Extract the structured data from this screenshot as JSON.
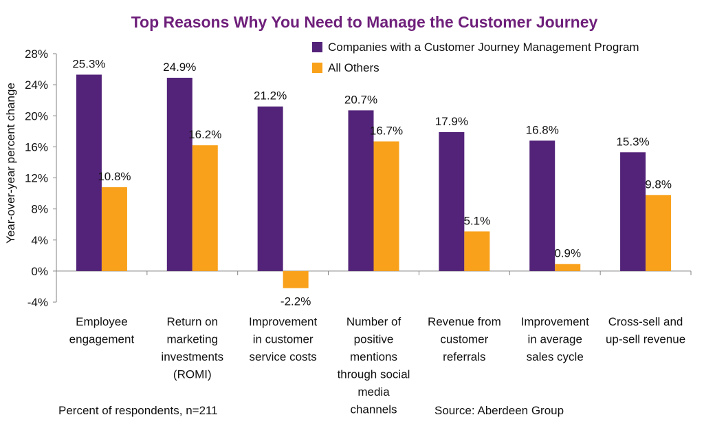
{
  "chart_data": {
    "type": "bar",
    "title": "Top Reasons Why You Need to Manage the Customer Journey",
    "xlabel": "",
    "ylabel": "Year-over-year percent change",
    "ylim": [
      -4,
      28
    ],
    "yticks": [
      -4,
      0,
      4,
      8,
      12,
      16,
      20,
      24,
      28
    ],
    "ytick_labels": [
      "-4%",
      "0%",
      "4%",
      "8%",
      "12%",
      "16%",
      "20%",
      "24%",
      "28%"
    ],
    "categories": [
      [
        "Employee",
        "engagement"
      ],
      [
        "Return on",
        "marketing",
        "investments",
        "(ROMI)"
      ],
      [
        "Improvement",
        "in customer",
        "service costs"
      ],
      [
        "Number of",
        "positive",
        "mentions",
        "through social",
        "media",
        "channels"
      ],
      [
        "Revenue from",
        "customer",
        "referrals"
      ],
      [
        "Improvement",
        "in average",
        "sales cycle"
      ],
      [
        "Cross-sell and",
        "up-sell revenue"
      ]
    ],
    "series": [
      {
        "name": "Companies with a Customer Journey Management Program",
        "color": "#532379",
        "values": [
          25.3,
          24.9,
          21.2,
          20.7,
          17.9,
          16.8,
          15.3
        ],
        "labels": [
          "25.3%",
          "24.9%",
          "21.2%",
          "20.7%",
          "17.9%",
          "16.8%",
          "15.3%"
        ]
      },
      {
        "name": "All Others",
        "color": "#F9A11B",
        "values": [
          10.8,
          16.2,
          -2.2,
          16.7,
          5.1,
          0.9,
          9.8
        ],
        "labels": [
          "10.8%",
          "16.2%",
          "-2.2%",
          "16.7%",
          "5.1%",
          "0.9%",
          "9.8%"
        ]
      }
    ],
    "legend_position": "top-right",
    "grid": false,
    "title_color": "#6E1F7A"
  },
  "footnotes": {
    "respondents": "Percent of respondents, n=211",
    "source": "Source: Aberdeen Group"
  }
}
